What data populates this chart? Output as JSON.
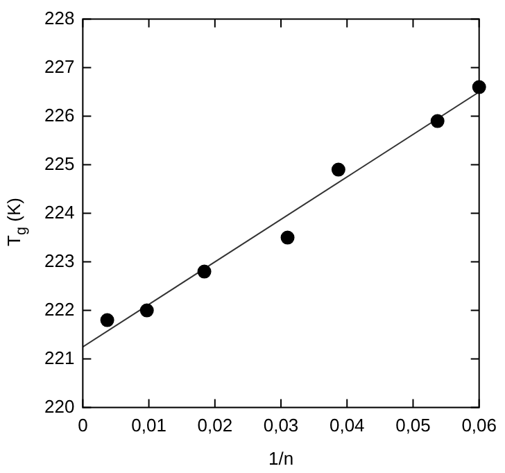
{
  "chart_data": {
    "type": "scatter",
    "xlabel": "1/n",
    "ylabel": "T$_{g}$ (K)",
    "grid": false,
    "legend": false,
    "line_style": "solid",
    "xlim": [
      0,
      0.06
    ],
    "ylim": [
      220,
      228
    ],
    "xticks": [
      0,
      {
        "value": 0.01,
        "label": "0,01"
      },
      {
        "value": 0.02,
        "label": "0,02"
      },
      {
        "value": 0.03,
        "label": "0,03"
      },
      {
        "value": 0.04,
        "label": "0,04"
      },
      {
        "value": 0.05,
        "label": "0,05"
      },
      {
        "value": 0.06,
        "label": "0,06"
      }
    ],
    "yticks": [
      220,
      221,
      222,
      223,
      224,
      225,
      226,
      227,
      228
    ],
    "series": [
      {
        "type": "scatter",
        "marker": "circle",
        "color": "#000000",
        "x": [
          0.0037,
          0.0097,
          0.0184,
          0.031,
          0.0387,
          0.0537,
          0.06
        ],
        "values": [
          221.8,
          222.0,
          222.8,
          223.5,
          224.9,
          225.9,
          226.6
        ]
      },
      {
        "type": "line",
        "color": "#333333",
        "x": [
          0,
          0.06
        ],
        "values": [
          221.25,
          226.5
        ]
      }
    ]
  }
}
